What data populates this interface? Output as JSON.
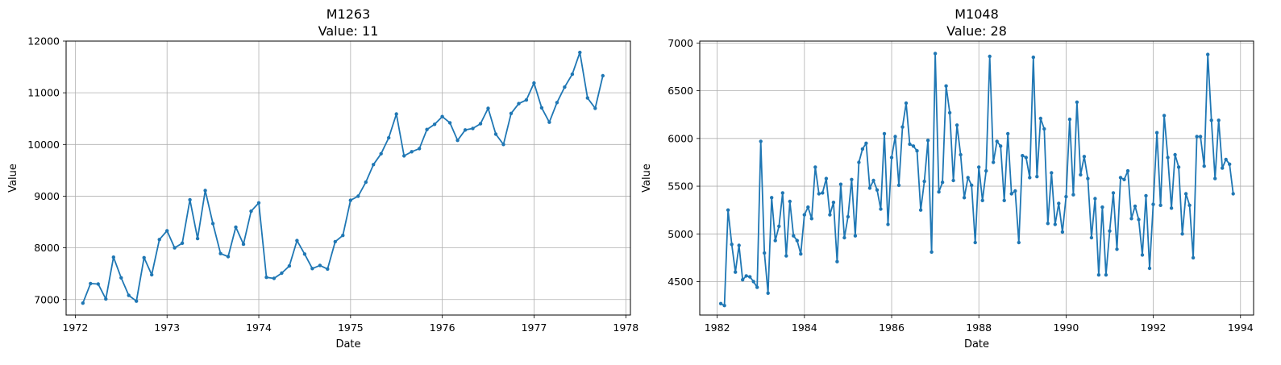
{
  "chart_data": [
    {
      "type": "line",
      "title": "M1263",
      "subtitle": "Value: 11",
      "xlabel": "Date",
      "ylabel": "Value",
      "x_ticks": [
        "1972",
        "1973",
        "1974",
        "1975",
        "1976",
        "1977",
        "1978"
      ],
      "y_ticks": [
        "7000",
        "8000",
        "9000",
        "10000",
        "11000",
        "12000"
      ],
      "xlim": [
        1971.9,
        1978.05
      ],
      "ylim": [
        6700,
        12000
      ],
      "grid": true,
      "color": "#1f77b4",
      "x_start": 1972.083,
      "x_step": 0.08333,
      "values": [
        6930,
        7310,
        7300,
        7010,
        7820,
        7420,
        7080,
        6970,
        7810,
        7480,
        8160,
        8330,
        8000,
        8090,
        8930,
        8180,
        9110,
        8470,
        7890,
        7830,
        8400,
        8070,
        8710,
        8870,
        7430,
        7410,
        7510,
        7650,
        8140,
        7880,
        7600,
        7660,
        7590,
        8120,
        8240,
        8920,
        9000,
        9270,
        9610,
        9820,
        10130,
        10590,
        9780,
        9860,
        9920,
        10290,
        10390,
        10540,
        10420,
        10080,
        10280,
        10310,
        10400,
        10700,
        10200,
        10000,
        10600,
        10790,
        10860,
        11190,
        10710,
        10430,
        10810,
        11110,
        11360,
        11780,
        10900,
        10700,
        11330
      ]
    },
    {
      "type": "line",
      "title": "M1048",
      "subtitle": "Value: 28",
      "xlabel": "Date",
      "ylabel": "Value",
      "x_ticks": [
        "1982",
        "1984",
        "1986",
        "1988",
        "1990",
        "1992",
        "1994"
      ],
      "y_ticks": [
        "4500",
        "5000",
        "5500",
        "6000",
        "6500",
        "7000"
      ],
      "xlim": [
        1981.6,
        1994.3
      ],
      "ylim": [
        4150,
        7020
      ],
      "grid": true,
      "color": "#1f77b4",
      "x_start": 1982.083,
      "x_step": 0.08333,
      "values": [
        4270,
        4250,
        5250,
        4890,
        4600,
        4880,
        4520,
        4560,
        4550,
        4500,
        4440,
        5970,
        4800,
        4380,
        5380,
        4930,
        5080,
        5430,
        4770,
        5340,
        4980,
        4930,
        4790,
        5200,
        5280,
        5160,
        5700,
        5420,
        5430,
        5580,
        5200,
        5330,
        4710,
        5520,
        4960,
        5180,
        5570,
        4980,
        5750,
        5890,
        5950,
        5480,
        5560,
        5460,
        5260,
        6050,
        5100,
        5800,
        6020,
        5510,
        6120,
        6370,
        5940,
        5920,
        5870,
        5250,
        5550,
        5980,
        4810,
        6890,
        5440,
        5540,
        6550,
        6270,
        5560,
        6140,
        5830,
        5380,
        5590,
        5510,
        4910,
        5700,
        5350,
        5660,
        6860,
        5750,
        5970,
        5920,
        5350,
        6050,
        5420,
        5450,
        4910,
        5820,
        5800,
        5590,
        6850,
        5600,
        6210,
        6100,
        5110,
        5640,
        5100,
        5320,
        5020,
        5390,
        6200,
        5410,
        6380,
        5620,
        5810,
        5580,
        4960,
        5370,
        4570,
        5280,
        4570,
        5030,
        5430,
        4840,
        5590,
        5570,
        5660,
        5160,
        5290,
        5150,
        4780,
        5400,
        4640,
        5310,
        6060,
        5300,
        6240,
        5800,
        5270,
        5830,
        5700,
        5000,
        5420,
        5300,
        4750,
        6020,
        6020,
        5710,
        6880,
        6190,
        5580,
        6190,
        5690,
        5780,
        5730,
        5420
      ]
    }
  ]
}
